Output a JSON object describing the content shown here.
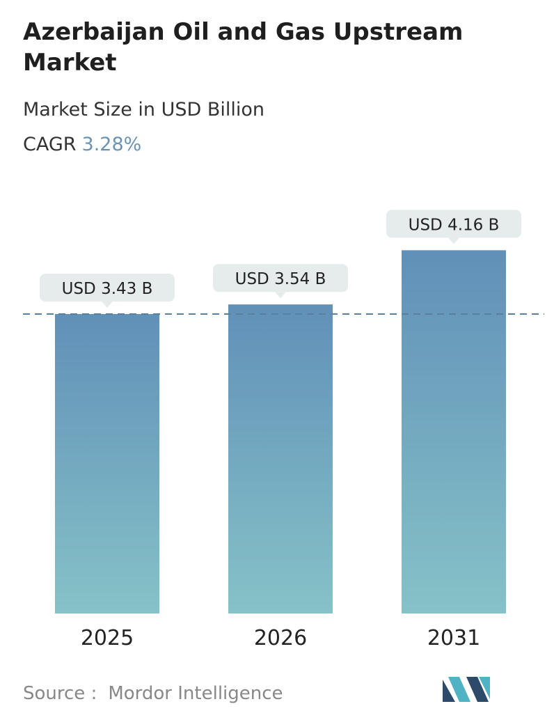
{
  "header": {
    "title": "Azerbaijan Oil and Gas Upstream Market",
    "subtitle": "Market Size in USD Billion",
    "cagr_label": "CAGR",
    "cagr_value": "3.28%"
  },
  "footer": {
    "source_label": "Source :",
    "source_name": "Mordor Intelligence"
  },
  "colors": {
    "bar_top": "#6190b8",
    "bar_bottom": "#86c2c8",
    "label_bg": "#e6ecec",
    "cagr_accent": "#6a94b2",
    "dashed_line": "#5a7f9a",
    "logo_dark": "#2d4a6b",
    "logo_light": "#4fb3c3"
  },
  "chart_data": {
    "type": "bar",
    "categories": [
      "2025",
      "2026",
      "2031"
    ],
    "values": [
      3.43,
      3.54,
      4.16
    ],
    "value_labels": [
      "USD 3.43 B",
      "USD 3.54 B",
      "USD 4.16 B"
    ],
    "title": "Azerbaijan Oil and Gas Upstream Market",
    "subtitle": "Market Size in USD Billion",
    "xlabel": "",
    "ylabel": "",
    "reference_line_value": 3.43,
    "grid": false,
    "legend": "none"
  }
}
